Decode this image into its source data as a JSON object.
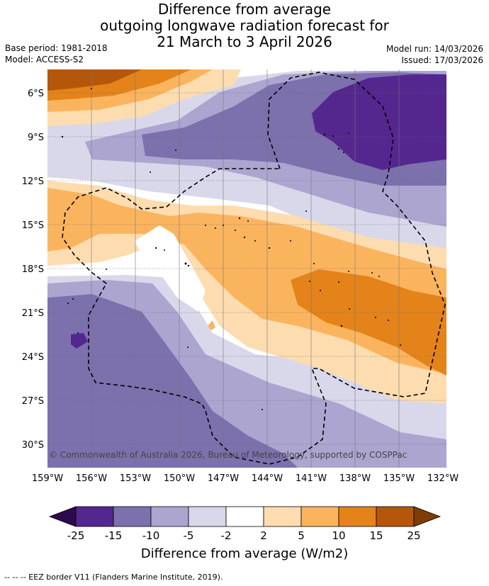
{
  "title": {
    "line1": "Difference from average",
    "line2": "outgoing longwave radiation forecast for",
    "line3": "21 March to 3 April 2026"
  },
  "meta": {
    "base_period": "Base period: 1981-2018",
    "model": "Model: ACCESS-S2",
    "model_run": "Model run: 14/03/2026",
    "issued": "Issued: 17/03/2026"
  },
  "map": {
    "lat_ticks": [
      "6°S",
      "9°S",
      "12°S",
      "15°S",
      "18°S",
      "21°S",
      "24°S",
      "27°S",
      "30°S"
    ],
    "lon_ticks": [
      "159°W",
      "156°W",
      "153°W",
      "150°W",
      "147°W",
      "144°W",
      "141°W",
      "138°W",
      "135°W",
      "132°W"
    ],
    "copyright": "© Commonwealth of Australia 2026, Bureau of Meteorology, supported by COSPPac"
  },
  "colorbar": {
    "ticks": [
      "-25",
      "-15",
      "-10",
      "-5",
      "-2",
      "2",
      "5",
      "10",
      "15",
      "25"
    ],
    "colors": [
      "#2d0a4e",
      "#54278f",
      "#7c70ad",
      "#aca5d0",
      "#d8d8ea",
      "#ffffff",
      "#fddcb0",
      "#fbb45e",
      "#e3831a",
      "#b5570b",
      "#7f3b08"
    ],
    "label": "Difference from average (W/m2)"
  },
  "footer": "--  --  -- EEZ border V11 (Flanders Marine Institute, 2019)."
}
